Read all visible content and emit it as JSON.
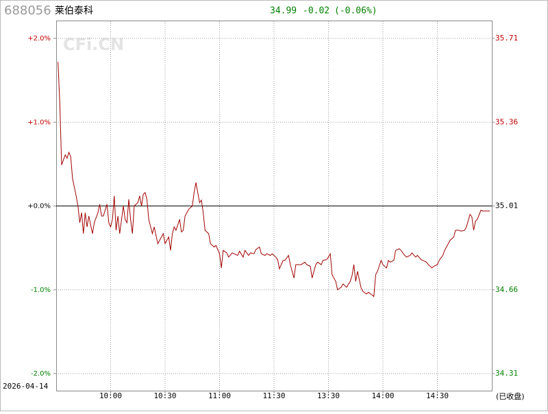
{
  "header": {
    "code": "688056",
    "name": "莱伯泰科",
    "price": 34.99,
    "change": -0.02,
    "change_pct": "(-0.06%)",
    "watermark": "CFi.CN",
    "date": "2026-04-14",
    "status": "(已收盘)"
  },
  "chart_data": {
    "type": "line",
    "up_color": "#c00000",
    "down_color": "#008000",
    "flat_color": "#000000",
    "xlim": [
      0,
      240
    ],
    "xticks": [
      {
        "value": 30,
        "label": "10:00"
      },
      {
        "value": 60,
        "label": "10:30"
      },
      {
        "value": 90,
        "label": "11:00"
      },
      {
        "value": 120,
        "label": "11:30"
      },
      {
        "value": 150,
        "label": "13:30"
      },
      {
        "value": 180,
        "label": "14:00"
      },
      {
        "value": 210,
        "label": "14:30"
      }
    ],
    "ylim": [
      -2,
      2
    ],
    "yticks": [
      {
        "value": 2,
        "label": "+2.0%"
      },
      {
        "value": 1,
        "label": "+1.0%"
      },
      {
        "value": 0,
        "label": "+0.0%"
      },
      {
        "value": -1,
        "label": "-1.0%"
      },
      {
        "value": -2,
        "label": "-2.0%"
      }
    ],
    "y2lim": [
      34.31,
      35.71
    ],
    "y2ticks": [
      35.71,
      35.36,
      35.01,
      34.66,
      34.31
    ],
    "grid": true,
    "x": [
      1,
      2,
      3,
      5,
      6,
      7,
      8,
      9,
      11,
      12,
      13,
      14,
      15,
      16,
      17,
      18,
      20,
      21,
      23,
      24,
      25,
      26,
      28,
      29,
      30,
      31,
      32,
      33,
      34,
      35,
      37,
      38,
      39,
      40,
      41,
      42,
      43,
      45,
      46,
      47,
      48,
      49,
      50,
      51,
      53,
      54,
      56,
      57,
      59,
      60,
      62,
      63,
      64,
      65,
      66,
      68,
      69,
      70,
      71,
      72,
      73,
      75,
      76,
      77,
      78,
      79,
      80,
      81,
      82,
      84,
      85,
      87,
      88,
      90,
      91,
      92,
      94,
      95,
      97,
      98,
      100,
      101,
      103,
      104,
      106,
      107,
      109,
      110,
      112,
      113,
      115,
      116,
      118,
      119,
      121,
      122,
      123,
      125,
      126,
      128,
      129,
      131,
      132,
      134,
      135,
      137,
      138,
      140,
      141,
      143,
      144,
      146,
      147,
      149,
      150,
      151,
      152,
      154,
      155,
      157,
      158,
      160,
      162,
      163,
      164,
      165,
      166,
      168,
      169,
      171,
      172,
      174,
      175,
      176,
      177,
      179,
      180,
      182,
      183,
      184,
      186,
      187,
      189,
      190,
      192,
      193,
      195,
      196,
      198,
      199,
      201,
      202,
      204,
      205,
      207,
      208,
      210,
      211,
      213,
      214,
      216,
      217,
      219,
      220,
      222,
      223,
      225,
      226,
      228,
      229,
      230,
      231,
      232,
      234,
      235,
      237,
      238,
      239
    ],
    "series": [
      {
        "name": "688056",
        "color": "#a00000",
        "values": [
          1.72,
          1.23,
          0.49,
          0.61,
          0.57,
          0.64,
          0.59,
          0.33,
          0.12,
          0,
          -0.2,
          -0.08,
          -0.33,
          -0.08,
          -0.25,
          -0.12,
          -0.33,
          -0.2,
          -0.08,
          0.02,
          -0.12,
          -0.12,
          0.02,
          -0.2,
          -0.25,
          -0.16,
          0.12,
          -0.29,
          -0.12,
          -0.33,
          0,
          -0.16,
          -0.2,
          0.08,
          -0.16,
          -0.33,
          0,
          0.04,
          0.12,
          0,
          0.14,
          0.16,
          0.08,
          -0.16,
          -0.33,
          -0.25,
          -0.45,
          -0.41,
          -0.33,
          -0.45,
          -0.37,
          -0.53,
          -0.33,
          -0.25,
          -0.29,
          -0.16,
          -0.31,
          -0.29,
          -0.12,
          -0.08,
          -0.04,
          0,
          0.16,
          0.28,
          0.16,
          0.04,
          0.07,
          -0.08,
          -0.29,
          -0.33,
          -0.45,
          -0.49,
          -0.47,
          -0.57,
          -0.74,
          -0.53,
          -0.56,
          -0.61,
          -0.56,
          -0.57,
          -0.59,
          -0.54,
          -0.61,
          -0.53,
          -0.59,
          -0.56,
          -0.57,
          -0.52,
          -0.49,
          -0.57,
          -0.59,
          -0.57,
          -0.59,
          -0.57,
          -0.61,
          -0.64,
          -0.75,
          -0.65,
          -0.65,
          -0.59,
          -0.7,
          -0.86,
          -0.7,
          -0.7,
          -0.7,
          -0.67,
          -0.7,
          -0.72,
          -0.86,
          -0.7,
          -0.67,
          -0.7,
          -0.65,
          -0.64,
          -0.61,
          -0.57,
          -0.82,
          -0.9,
          -1.0,
          -0.97,
          -0.93,
          -0.97,
          -0.9,
          -0.83,
          -0.7,
          -0.9,
          -0.78,
          -0.98,
          -1.02,
          -1.05,
          -1.03,
          -1.06,
          -1.08,
          -0.82,
          -0.78,
          -0.65,
          -0.7,
          -0.74,
          -0.65,
          -0.67,
          -0.65,
          -0.53,
          -0.51,
          -0.53,
          -0.59,
          -0.61,
          -0.59,
          -0.56,
          -0.61,
          -0.59,
          -0.64,
          -0.65,
          -0.67,
          -0.7,
          -0.74,
          -0.72,
          -0.7,
          -0.65,
          -0.59,
          -0.53,
          -0.45,
          -0.41,
          -0.37,
          -0.29,
          -0.29,
          -0.3,
          -0.29,
          -0.25,
          -0.1,
          -0.13,
          -0.29,
          -0.18,
          -0.16,
          -0.05,
          -0.06,
          -0.06,
          -0.06,
          -0.06
        ]
      }
    ]
  }
}
